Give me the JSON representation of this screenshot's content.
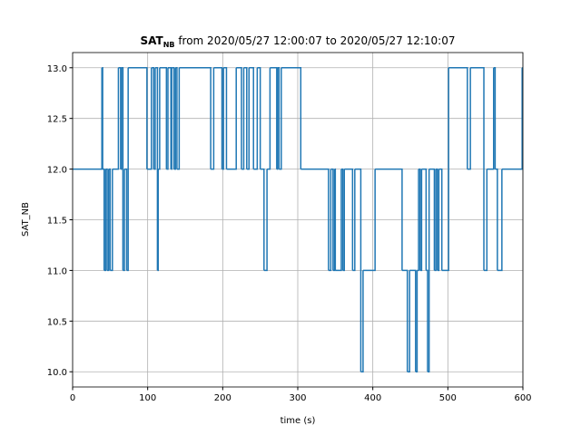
{
  "chart_data": {
    "type": "line",
    "drawstyle": "steps-post",
    "title_main": "SAT",
    "title_sub": "NB",
    "title_rest": " from 2020/05/27 12:00:07 to 2020/05/27 12:10:07",
    "xlabel": "time (s)",
    "ylabel": "SAT_NB",
    "x": [
      0,
      39,
      40,
      42,
      44,
      46,
      48,
      50,
      53,
      61,
      64,
      65,
      67,
      69,
      72,
      74,
      99,
      105,
      108,
      110,
      113,
      114,
      116,
      125,
      127,
      131,
      132,
      135,
      137,
      139,
      142,
      184,
      188,
      199,
      201,
      205,
      218,
      225,
      228,
      232,
      235,
      241,
      246,
      250,
      255,
      259,
      263,
      272,
      273,
      275,
      278,
      304,
      341,
      344,
      347,
      349,
      350,
      358,
      360,
      362,
      373,
      376,
      384,
      387,
      403,
      439,
      446,
      449,
      457,
      459,
      461,
      463,
      465,
      471,
      473,
      475,
      482,
      484,
      486,
      488,
      492,
      501,
      526,
      530,
      548,
      552,
      561,
      563,
      566,
      572,
      599,
      600
    ],
    "series": [
      {
        "name": "SAT_NB",
        "color": "#1f77b4",
        "values": [
          12,
          13,
          12,
          11,
          12,
          11,
          12,
          11,
          12,
          13,
          12,
          13,
          11,
          12,
          11,
          13,
          12,
          13,
          12,
          13,
          11,
          12,
          13,
          12,
          13,
          12,
          13,
          12,
          13,
          12,
          13,
          12,
          13,
          12,
          13,
          12,
          13,
          12,
          13,
          12,
          13,
          12,
          13,
          12,
          11,
          12,
          13,
          12,
          13,
          12,
          13,
          12,
          11,
          12,
          11,
          12,
          11,
          12,
          11,
          12,
          11,
          12,
          10,
          11,
          12,
          11,
          10,
          11,
          10,
          11,
          12,
          11,
          12,
          11,
          10,
          12,
          11,
          12,
          11,
          12,
          11,
          13,
          12,
          13,
          11,
          12,
          13,
          12,
          11,
          12,
          13,
          13
        ]
      }
    ],
    "xlim": [
      0,
      600
    ],
    "ylim": [
      9.85,
      13.15
    ],
    "xticks": [
      0,
      100,
      200,
      300,
      400,
      500,
      600
    ],
    "yticks": [
      {
        "value": 10,
        "label": "10.0"
      },
      {
        "value": 10.5,
        "label": "10.5"
      },
      {
        "value": 11,
        "label": "11.0"
      },
      {
        "value": 11.5,
        "label": "11.5"
      },
      {
        "value": 12,
        "label": "12.0"
      },
      {
        "value": 12.5,
        "label": "12.5"
      },
      {
        "value": 13,
        "label": "13.0"
      }
    ],
    "grid": true
  }
}
